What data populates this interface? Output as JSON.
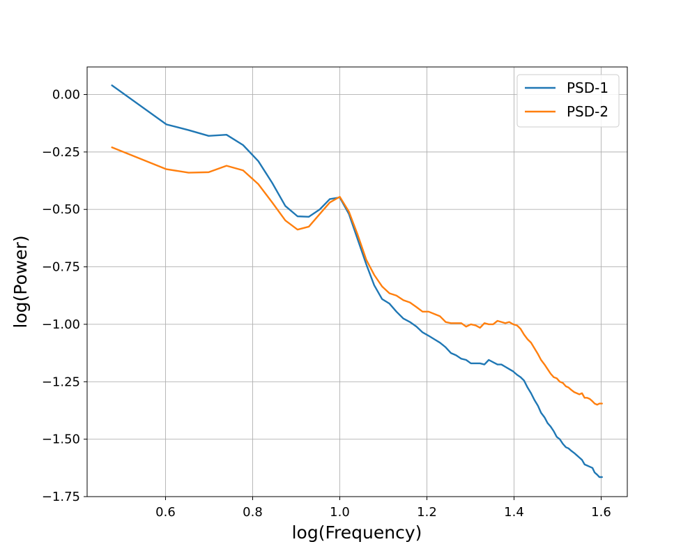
{
  "chart_data": {
    "type": "line",
    "xlabel": "log(Frequency)",
    "ylabel": "log(Power)",
    "xlim": [
      0.42,
      1.66
    ],
    "ylim": [
      -1.75,
      0.12
    ],
    "xticks": [
      0.6,
      0.8,
      1.0,
      1.2,
      1.4,
      1.6
    ],
    "xtick_labels": [
      "0.6",
      "0.8",
      "1.0",
      "1.2",
      "1.4",
      "1.6"
    ],
    "yticks": [
      0.0,
      -0.25,
      -0.5,
      -0.75,
      -1.0,
      -1.25,
      -1.5,
      -1.75
    ],
    "ytick_labels": [
      "0.00",
      "−0.25",
      "−0.50",
      "−0.75",
      "−1.00",
      "−1.25",
      "−1.50",
      "−1.75"
    ],
    "grid": true,
    "legend": "top-right",
    "series": [
      {
        "name": "PSD-1",
        "color": "#1f77b4",
        "x": [
          0.477,
          0.602,
          0.653,
          0.699,
          0.74,
          0.778,
          0.813,
          0.845,
          0.875,
          0.903,
          0.929,
          0.954,
          0.977,
          1.0,
          1.021,
          1.041,
          1.061,
          1.079,
          1.097,
          1.114,
          1.13,
          1.146,
          1.161,
          1.176,
          1.19,
          1.204,
          1.217,
          1.23,
          1.243,
          1.255,
          1.267,
          1.279,
          1.29,
          1.301,
          1.312,
          1.322,
          1.332,
          1.342,
          1.352,
          1.362,
          1.371,
          1.38,
          1.389,
          1.398,
          1.407,
          1.415,
          1.423,
          1.431,
          1.439,
          1.447,
          1.455,
          1.462,
          1.47,
          1.477,
          1.484,
          1.491,
          1.498,
          1.505,
          1.512,
          1.519,
          1.525,
          1.531,
          1.538,
          1.544,
          1.55,
          1.556,
          1.562,
          1.568,
          1.574,
          1.58,
          1.585,
          1.591,
          1.596,
          1.602
        ],
        "y": [
          0.04,
          -0.13,
          -0.155,
          -0.18,
          -0.175,
          -0.22,
          -0.29,
          -0.385,
          -0.485,
          -0.53,
          -0.532,
          -0.5,
          -0.455,
          -0.448,
          -0.52,
          -0.63,
          -0.74,
          -0.83,
          -0.89,
          -0.91,
          -0.945,
          -0.975,
          -0.99,
          -1.01,
          -1.035,
          -1.05,
          -1.065,
          -1.08,
          -1.1,
          -1.125,
          -1.135,
          -1.15,
          -1.155,
          -1.17,
          -1.17,
          -1.17,
          -1.175,
          -1.155,
          -1.165,
          -1.175,
          -1.175,
          -1.185,
          -1.195,
          -1.205,
          -1.22,
          -1.23,
          -1.245,
          -1.275,
          -1.3,
          -1.33,
          -1.355,
          -1.385,
          -1.405,
          -1.43,
          -1.445,
          -1.465,
          -1.49,
          -1.5,
          -1.52,
          -1.535,
          -1.54,
          -1.55,
          -1.56,
          -1.57,
          -1.58,
          -1.59,
          -1.61,
          -1.615,
          -1.62,
          -1.625,
          -1.645,
          -1.655,
          -1.665,
          -1.665
        ]
      },
      {
        "name": "PSD-2",
        "color": "#ff7f0e",
        "x": [
          0.477,
          0.602,
          0.653,
          0.699,
          0.74,
          0.778,
          0.813,
          0.845,
          0.875,
          0.903,
          0.929,
          0.954,
          0.977,
          1.0,
          1.021,
          1.041,
          1.061,
          1.079,
          1.097,
          1.114,
          1.13,
          1.146,
          1.161,
          1.176,
          1.19,
          1.204,
          1.217,
          1.23,
          1.243,
          1.255,
          1.267,
          1.279,
          1.29,
          1.301,
          1.312,
          1.322,
          1.332,
          1.342,
          1.352,
          1.362,
          1.371,
          1.38,
          1.389,
          1.398,
          1.407,
          1.415,
          1.423,
          1.431,
          1.439,
          1.447,
          1.455,
          1.462,
          1.47,
          1.477,
          1.484,
          1.491,
          1.498,
          1.505,
          1.512,
          1.519,
          1.525,
          1.531,
          1.538,
          1.544,
          1.55,
          1.556,
          1.562,
          1.568,
          1.574,
          1.58,
          1.585,
          1.591,
          1.596,
          1.602
        ],
        "y": [
          -0.23,
          -0.325,
          -0.34,
          -0.338,
          -0.31,
          -0.33,
          -0.39,
          -0.47,
          -0.548,
          -0.588,
          -0.575,
          -0.52,
          -0.47,
          -0.445,
          -0.51,
          -0.61,
          -0.72,
          -0.785,
          -0.835,
          -0.865,
          -0.875,
          -0.895,
          -0.905,
          -0.925,
          -0.945,
          -0.945,
          -0.955,
          -0.965,
          -0.99,
          -0.995,
          -0.995,
          -0.995,
          -1.01,
          -1.0,
          -1.005,
          -1.015,
          -0.995,
          -1.0,
          -1.0,
          -0.985,
          -0.99,
          -0.995,
          -0.99,
          -1.0,
          -1.005,
          -1.02,
          -1.045,
          -1.065,
          -1.08,
          -1.105,
          -1.13,
          -1.155,
          -1.175,
          -1.195,
          -1.215,
          -1.23,
          -1.235,
          -1.25,
          -1.255,
          -1.27,
          -1.275,
          -1.285,
          -1.295,
          -1.3,
          -1.305,
          -1.3,
          -1.32,
          -1.32,
          -1.325,
          -1.335,
          -1.345,
          -1.35,
          -1.345,
          -1.345
        ]
      }
    ]
  }
}
